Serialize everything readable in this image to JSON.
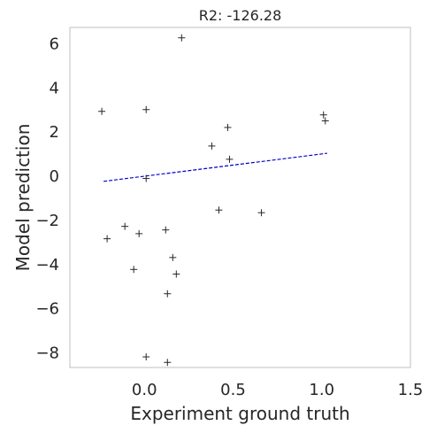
{
  "chart_data": {
    "type": "scatter",
    "title": "R2: -126.28",
    "xlabel": "Experiment ground truth",
    "ylabel": "Model prediction",
    "xlim": [
      -0.42,
      1.5
    ],
    "ylim": [
      -8.7,
      6.7
    ],
    "grid": false,
    "x_ticks": [
      {
        "value": 0.0,
        "label": "0.0"
      },
      {
        "value": 0.5,
        "label": "0.5"
      },
      {
        "value": 1.0,
        "label": "1.0"
      },
      {
        "value": 1.5,
        "label": "1.5"
      }
    ],
    "y_ticks": [
      {
        "value": 6,
        "label": "6"
      },
      {
        "value": 4,
        "label": "4"
      },
      {
        "value": 2,
        "label": "2"
      },
      {
        "value": 0,
        "label": "0"
      },
      {
        "value": -2,
        "label": "−2"
      },
      {
        "value": -4,
        "label": "−4"
      },
      {
        "value": -6,
        "label": "−6"
      },
      {
        "value": -8,
        "label": "−8"
      }
    ],
    "points": [
      {
        "x": 0.21,
        "y": 6.23
      },
      {
        "x": -0.24,
        "y": 2.9
      },
      {
        "x": 0.01,
        "y": 2.98
      },
      {
        "x": 1.01,
        "y": 2.74
      },
      {
        "x": 1.02,
        "y": 2.47
      },
      {
        "x": 0.47,
        "y": 2.17
      },
      {
        "x": 0.38,
        "y": 1.33
      },
      {
        "x": 0.48,
        "y": 0.73
      },
      {
        "x": 0.01,
        "y": -0.14
      },
      {
        "x": 0.42,
        "y": -1.57
      },
      {
        "x": 0.66,
        "y": -1.69
      },
      {
        "x": -0.11,
        "y": -2.31
      },
      {
        "x": -0.21,
        "y": -2.87
      },
      {
        "x": -0.03,
        "y": -2.64
      },
      {
        "x": 0.12,
        "y": -2.47
      },
      {
        "x": 0.16,
        "y": -3.72
      },
      {
        "x": -0.06,
        "y": -4.26
      },
      {
        "x": 0.18,
        "y": -4.47
      },
      {
        "x": 0.13,
        "y": -5.36
      },
      {
        "x": 0.01,
        "y": -8.22
      },
      {
        "x": 0.13,
        "y": -8.47
      }
    ],
    "fit_line": {
      "x": [
        -0.23,
        1.03
      ],
      "y": [
        -0.27,
        1.0
      ]
    },
    "marker_color": "#262626",
    "fit_line_color": "#0000cc",
    "frame_color": "#cccccc"
  }
}
